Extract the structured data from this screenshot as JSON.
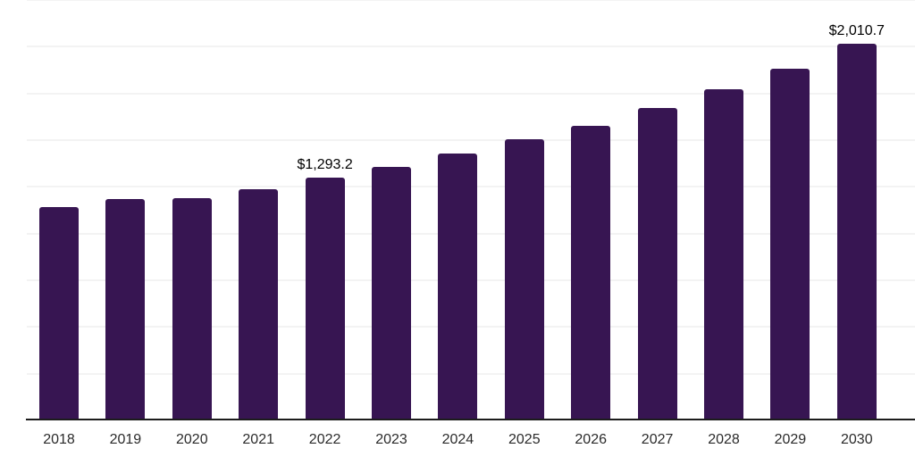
{
  "chart": {
    "background_color": "#ffffff",
    "bar_color": "#371552",
    "axis_color": "#1c1c1c",
    "gridline_color": "#f3f3f3",
    "data_label_color": "#000000",
    "tick_label_color": "#2b2b2b"
  },
  "chart_data": {
    "type": "bar",
    "title": "",
    "xlabel": "",
    "ylabel": "",
    "categories": [
      "2018",
      "2019",
      "2020",
      "2021",
      "2022",
      "2023",
      "2024",
      "2025",
      "2026",
      "2027",
      "2028",
      "2029",
      "2030"
    ],
    "values": [
      1136.7,
      1179.7,
      1184.4,
      1232.2,
      1293.2,
      1351.6,
      1423.3,
      1499.7,
      1571.3,
      1666.8,
      1767.1,
      1877.0,
      2010.7
    ],
    "data_labels": [
      "",
      "",
      "",
      "",
      "$1,293.2",
      "",
      "",
      "",
      "",
      "",
      "",
      "",
      "$2,010.7"
    ],
    "ylim": [
      0,
      2250
    ],
    "gridline_step": 250,
    "grid": "horizontal-only",
    "legend": "none",
    "y_axis_ticks_visible": false,
    "notes": "Only 2022 and 2030 bars carry visible data labels"
  }
}
